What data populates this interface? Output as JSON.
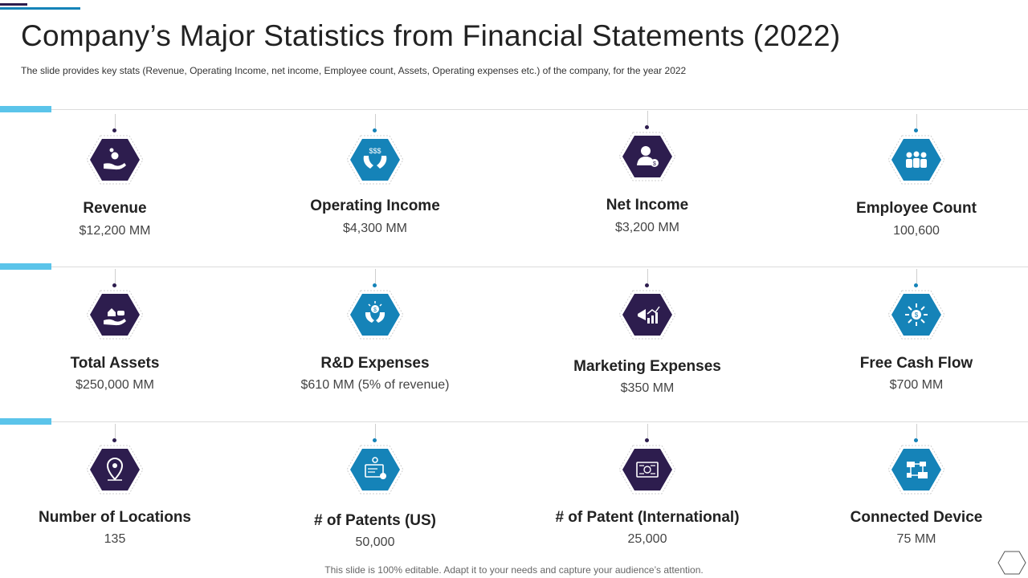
{
  "title": "Company’s Major Statistics from Financial Statements (2022)",
  "subtitle": "The slide provides  key stats (Revenue,  Operating Income, net income, Employee count, Assets, Operating expenses etc.) of the company, for the year 2022",
  "footer": "This slide is 100% editable. Adapt it to your needs and capture your audience’s attention.",
  "colors": {
    "purple": "#2d1d4e",
    "blue": "#1583b8",
    "accent": "#5bc4ea"
  },
  "stats": [
    {
      "label": "Revenue",
      "value": "$12,200 MM",
      "icon": "money-hand-icon",
      "color": "purple"
    },
    {
      "label": "Operating Income",
      "value": "$4,300 MM",
      "icon": "hands-money-icon",
      "color": "blue"
    },
    {
      "label": "Net Income",
      "value": "$3,200 MM",
      "icon": "person-dollar-icon",
      "color": "purple"
    },
    {
      "label": "Employee Count",
      "value": "100,600",
      "icon": "team-icon",
      "color": "blue"
    },
    {
      "label": "Total Assets",
      "value": "$250,000 MM",
      "icon": "assets-hand-icon",
      "color": "purple"
    },
    {
      "label": "R&D Expenses",
      "value": "$610 MM (5% of revenue)",
      "icon": "research-funding-icon",
      "color": "blue"
    },
    {
      "label": "Marketing Expenses",
      "value": "$350 MM",
      "icon": "megaphone-growth-icon",
      "color": "purple"
    },
    {
      "label": "Free Cash Flow",
      "value": "$700 MM",
      "icon": "cash-flow-icon",
      "color": "blue"
    },
    {
      "label": "Number of Locations",
      "value": "135",
      "icon": "location-pin-icon",
      "color": "purple"
    },
    {
      "label": "# of Patents (US)",
      "value": "50,000",
      "icon": "patent-certificate-icon",
      "color": "blue"
    },
    {
      "label": "# of Patent (International)",
      "value": "25,000",
      "icon": "international-certificate-icon",
      "color": "purple"
    },
    {
      "label": "Connected Device",
      "value": "75 MM",
      "icon": "network-devices-icon",
      "color": "blue"
    }
  ]
}
